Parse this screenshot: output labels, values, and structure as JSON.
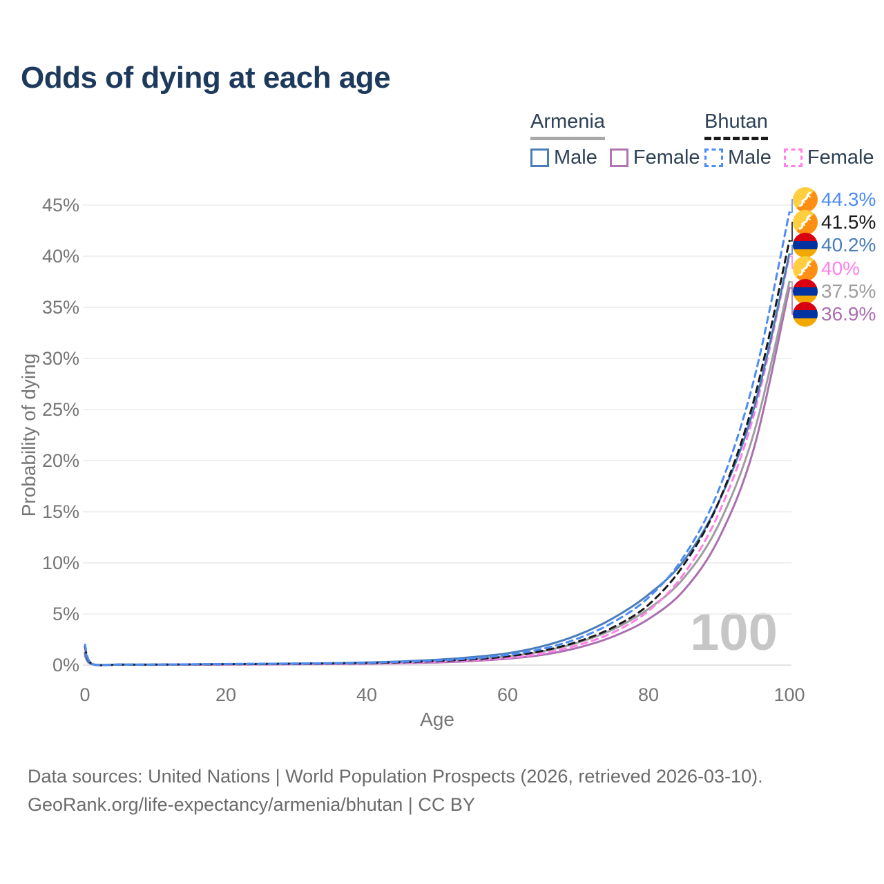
{
  "title": "Odds of dying at each age",
  "watermark": "100",
  "legend": {
    "groups": [
      {
        "country": "Armenia",
        "line_style": "solid",
        "underline_color": "#a8a8a8",
        "items": [
          {
            "label": "Male",
            "color": "#4a7ebb"
          },
          {
            "label": "Female",
            "color": "#b273b2"
          }
        ]
      },
      {
        "country": "Bhutan",
        "line_style": "dashed",
        "underline_color": "#1a1a1a",
        "items": [
          {
            "label": "Male",
            "color": "#4d8cf5"
          },
          {
            "label": "Female",
            "color": "#ff80e9"
          }
        ]
      }
    ]
  },
  "chart_data": {
    "type": "line",
    "title": "Odds of dying at each age",
    "xlabel": "Age",
    "ylabel": "Probability of dying",
    "xlim": [
      0,
      100
    ],
    "ylim_percent": [
      0,
      47
    ],
    "x_ticks": [
      0,
      20,
      40,
      60,
      80,
      100
    ],
    "y_ticks": [
      "0%",
      "5%",
      "10%",
      "15%",
      "20%",
      "25%",
      "30%",
      "35%",
      "40%",
      "45%"
    ],
    "grid": "horizontal",
    "legend_position": "top-right",
    "x": [
      0,
      1,
      5,
      10,
      15,
      20,
      25,
      30,
      35,
      40,
      45,
      50,
      55,
      60,
      65,
      70,
      75,
      80,
      85,
      90,
      95,
      100
    ],
    "series": [
      {
        "name": "Bhutan Male",
        "country": "Bhutan",
        "color": "#4d8cf5",
        "dash": true,
        "end_label": "44.3%",
        "values": [
          2.0,
          0.15,
          0.06,
          0.05,
          0.08,
          0.11,
          0.13,
          0.15,
          0.18,
          0.23,
          0.32,
          0.45,
          0.65,
          1.0,
          1.6,
          2.6,
          4.2,
          6.6,
          10.6,
          17.2,
          28.0,
          44.3
        ]
      },
      {
        "name": "Bhutan",
        "country": "Bhutan",
        "color": "#1a1a1a",
        "dash": true,
        "end_label": "41.5%",
        "values": [
          1.8,
          0.13,
          0.05,
          0.045,
          0.07,
          0.09,
          0.11,
          0.13,
          0.16,
          0.2,
          0.28,
          0.39,
          0.56,
          0.85,
          1.4,
          2.3,
          3.7,
          5.9,
          9.8,
          16.0,
          26.0,
          41.5
        ]
      },
      {
        "name": "Armenia Male",
        "country": "Armenia",
        "color": "#4a7ebb",
        "dash": false,
        "end_label": "40.2%",
        "values": [
          1.2,
          0.1,
          0.05,
          0.05,
          0.07,
          0.1,
          0.12,
          0.15,
          0.19,
          0.26,
          0.36,
          0.52,
          0.78,
          1.15,
          1.85,
          2.95,
          4.6,
          6.9,
          10.2,
          16.0,
          25.2,
          40.2
        ]
      },
      {
        "name": "Bhutan Female",
        "country": "Bhutan",
        "color": "#ff80e9",
        "dash": true,
        "end_label": "40%",
        "values": [
          1.6,
          0.12,
          0.05,
          0.04,
          0.05,
          0.07,
          0.09,
          0.11,
          0.13,
          0.17,
          0.23,
          0.32,
          0.47,
          0.7,
          1.15,
          1.95,
          3.2,
          5.3,
          8.9,
          14.9,
          24.6,
          40.0
        ]
      },
      {
        "name": "Armenia",
        "country": "Armenia",
        "color": "#9e9e9e",
        "dash": false,
        "end_label": "37.5%",
        "values": [
          1.1,
          0.09,
          0.04,
          0.04,
          0.05,
          0.07,
          0.09,
          0.11,
          0.14,
          0.19,
          0.26,
          0.38,
          0.57,
          0.85,
          1.35,
          2.2,
          3.5,
          5.5,
          8.5,
          13.8,
          22.8,
          37.5
        ]
      },
      {
        "name": "Armenia Female",
        "country": "Armenia",
        "color": "#ab6fb0",
        "dash": false,
        "end_label": "36.9%",
        "values": [
          0.9,
          0.08,
          0.04,
          0.03,
          0.04,
          0.05,
          0.06,
          0.08,
          0.1,
          0.13,
          0.18,
          0.26,
          0.4,
          0.62,
          1.0,
          1.7,
          2.8,
          4.5,
          7.3,
          12.4,
          21.3,
          36.9
        ]
      }
    ]
  },
  "flags": {
    "Armenia": {
      "red": "#d90012",
      "blue": "#0033a0",
      "orange": "#f2a800"
    },
    "Bhutan": {
      "yellow": "#ffcf3f",
      "orange": "#ff8f12",
      "dragon": "#ffffff"
    }
  },
  "footer": {
    "line1": "Data sources: United Nations | World Population Prospects (2026, retrieved 2026-03-10).",
    "line2": "GeoRank.org/life-expectancy/armenia/bhutan | CC BY"
  }
}
